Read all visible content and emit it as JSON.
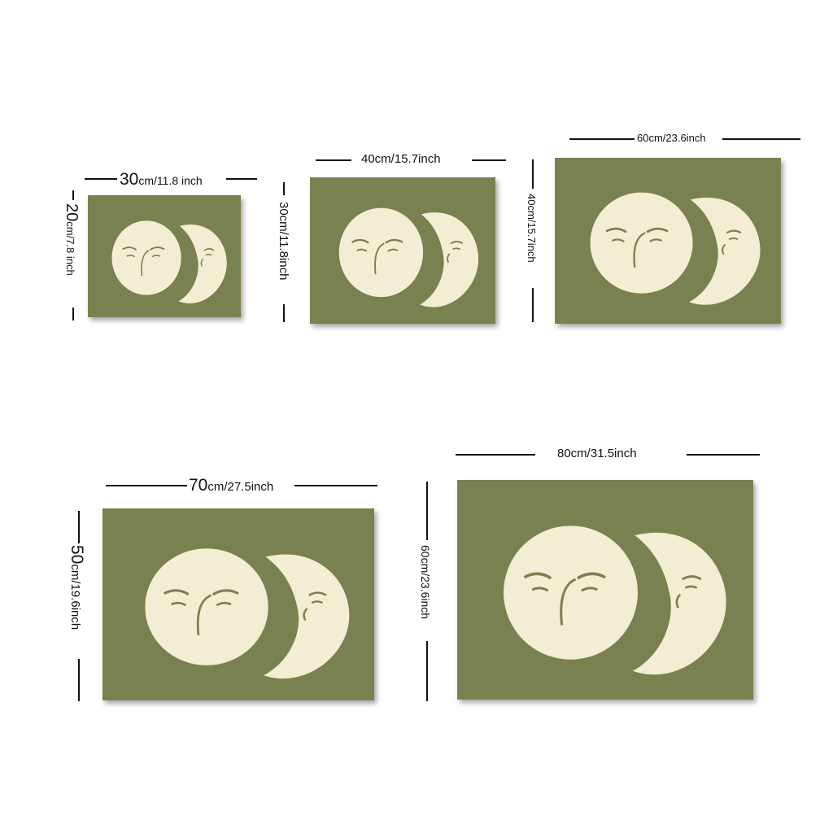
{
  "palette": {
    "background": "#ffffff",
    "canvas": "#7a8150",
    "moon": "#f2edd3",
    "line": "#111111"
  },
  "sizes": [
    {
      "width_num": "30",
      "width_unit": "cm/11.8 inch",
      "height_num": "20",
      "height_unit": "cm/7.8 inch"
    },
    {
      "width_num": "",
      "width_unit": "40cm/15.7inch",
      "height_num": "",
      "height_unit": "30cm/11.8inch"
    },
    {
      "width_num": "",
      "width_unit": "60cm/23.6inch",
      "height_num": "",
      "height_unit": "40cm/15.7inch"
    },
    {
      "width_num": "70",
      "width_unit": "cm/27.5inch",
      "height_num": "50",
      "height_unit": "cm/19.6inch"
    },
    {
      "width_num": "",
      "width_unit": "80cm/31.5inch",
      "height_num": "",
      "height_unit": "60cm/23.6inch"
    }
  ],
  "artwork": {
    "subject": "sun-and-crescent-moon-faces"
  }
}
